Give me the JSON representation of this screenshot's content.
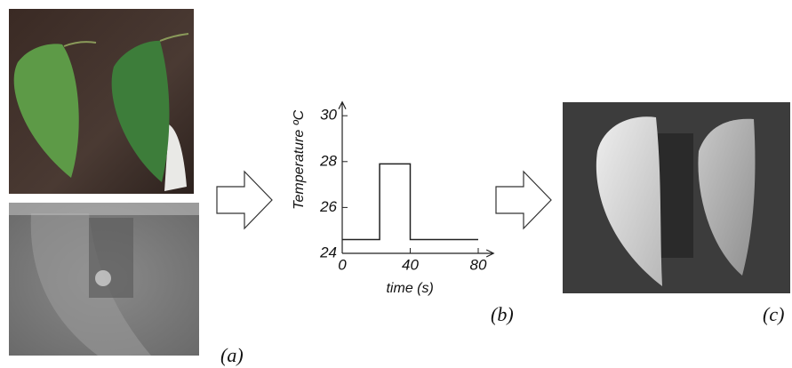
{
  "chart_data": {
    "type": "line",
    "x_label": "time (s)",
    "y_label": "Temperature ºC",
    "x": [
      0,
      22,
      22,
      40,
      40,
      80
    ],
    "series": [
      {
        "color": "#222222",
        "values": [
          24.6,
          24.6,
          27.9,
          27.9,
          24.6,
          24.6
        ]
      }
    ],
    "xlim": [
      -1,
      89
    ],
    "xticks": [
      0,
      40,
      80
    ],
    "ylim": [
      24,
      30.6
    ],
    "yticks": [
      24,
      26,
      28,
      30
    ]
  },
  "panel_labels": [
    "(a)",
    "(b)",
    "(c)"
  ]
}
